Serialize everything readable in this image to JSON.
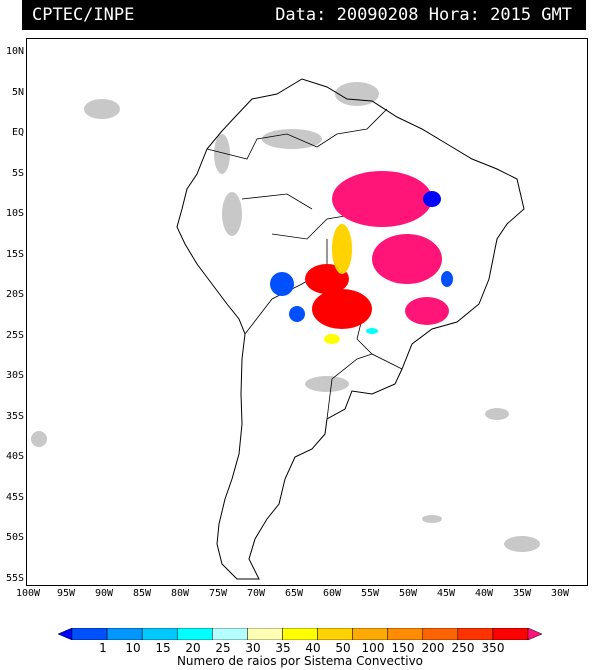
{
  "header": {
    "source": "CPTEC/INPE",
    "datetime": "Data: 20090208 Hora: 2015 GMT"
  },
  "lat_labels": [
    "10N",
    "5N",
    "EQ",
    "5S",
    "10S",
    "15S",
    "20S",
    "25S",
    "30S",
    "35S",
    "40S",
    "45S",
    "50S",
    "55S"
  ],
  "lon_labels": [
    "100W",
    "95W",
    "90W",
    "85W",
    "80W",
    "75W",
    "70W",
    "65W",
    "60W",
    "55W",
    "50W",
    "45W",
    "40W",
    "35W",
    "30W"
  ],
  "colorbar": {
    "ticks": [
      "1",
      "10",
      "15",
      "20",
      "25",
      "30",
      "35",
      "40",
      "50",
      "100",
      "150",
      "200",
      "250",
      "350"
    ],
    "colors": [
      "#0000ff",
      "#0050ff",
      "#0096ff",
      "#00c8ff",
      "#00ffff",
      "#b4ffff",
      "#ffffb4",
      "#ffff00",
      "#ffd200",
      "#ffaa00",
      "#ff8c00",
      "#ff6400",
      "#ff3200",
      "#ff0000",
      "#ff1478"
    ],
    "title": "Numero de raios por Sistema Convectivo"
  }
}
